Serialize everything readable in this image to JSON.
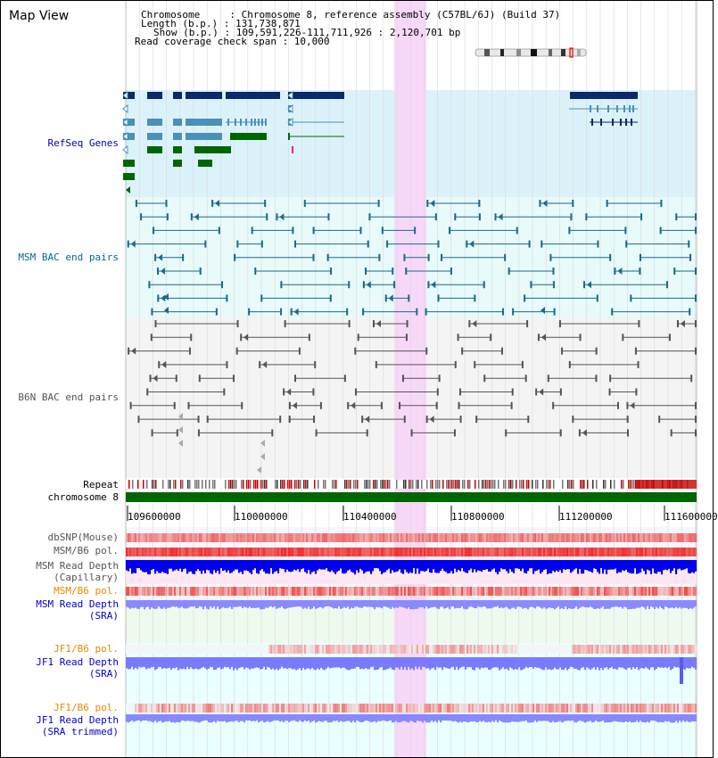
{
  "header": {
    "title": "Map View",
    "info_lines": [
      "Chromosome     : Chromosome 8, reference assembly (C57BL/6J) (Build 37)",
      "Length (b.p.) : 131,738,871",
      "Show (b.p.) : 109,591,226-111,711,926 : 2,120,701 bp",
      "Read coverage check span : 10,000"
    ]
  },
  "tracks": {
    "refseq": "RefSeq Genes",
    "msm_bac": "MSM BAC end pairs",
    "b6n_bac": "B6N BAC end pairs",
    "repeat": "Repeat",
    "chromosome": "chromosome 8",
    "dbsnp": "dbSNP(Mouse)",
    "msm_b6_pol_1": "MSM/B6 pol.",
    "msm_depth_cap_1": "MSM Read Depth",
    "msm_depth_cap_2": "(Capillary)",
    "msm_b6_pol_2": "MSM/B6 pol.",
    "msm_depth_sra_1": "MSM Read Depth",
    "msm_depth_sra_2": "(SRA)",
    "jf1_b6_pol_1": "JF1/B6 pol.",
    "jf1_depth_sra_1": "JF1 Read Depth",
    "jf1_depth_sra_2": "(SRA)",
    "jf1_b6_pol_2": "JF1/B6 pol.",
    "jf1_depth_trim_1": "JF1 Read Depth",
    "jf1_depth_trim_2": "(SRA trimmed)"
  },
  "axis": {
    "ticks": [
      "109600000",
      "110000000",
      "110400000",
      "110800000",
      "111200000",
      "111600000"
    ]
  },
  "colors": {
    "refseq_dark": "#0a2a6a",
    "refseq_mid": "#4a90b8",
    "refseq_green": "#006600",
    "msm_line": "#1a6a8a",
    "b6n_line": "#555555",
    "highlight": "#f8d8f8",
    "chrom_green": "#006600",
    "depth_blue": "#0000ee",
    "depth_light": "#7a7aff"
  }
}
